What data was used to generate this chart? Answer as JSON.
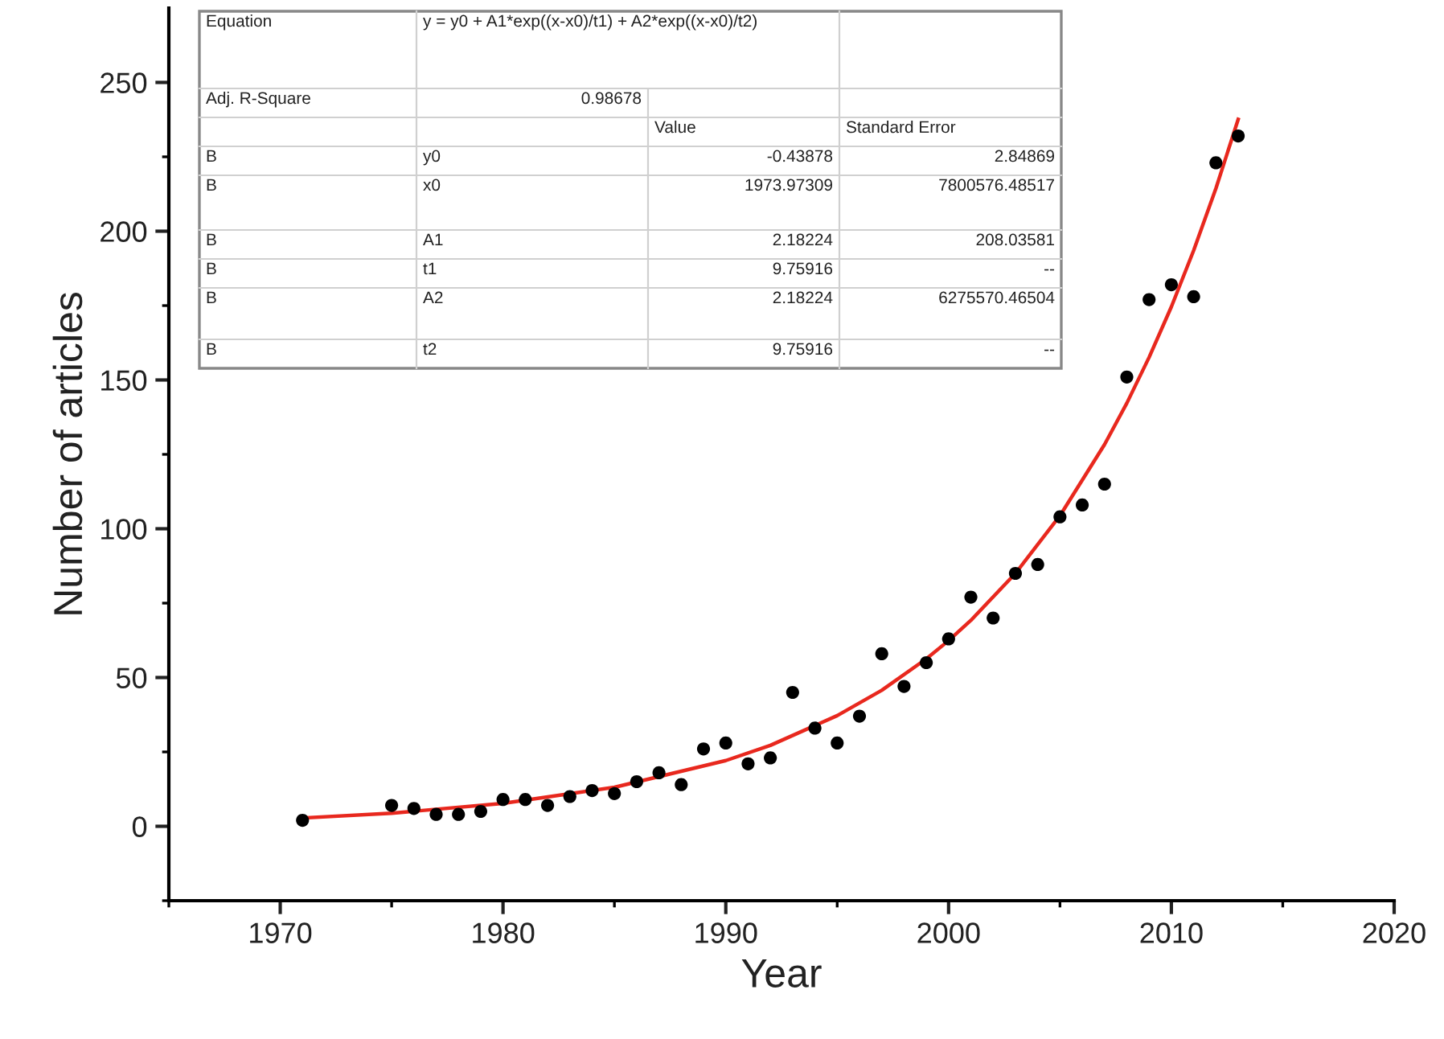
{
  "chart_data": {
    "type": "scatter",
    "xlabel": "Year",
    "ylabel": "Number of articles",
    "xlim": [
      1965,
      2020
    ],
    "xticks": [
      1970,
      1980,
      1990,
      2000,
      2010,
      2020
    ],
    "ylim": [
      -25,
      275
    ],
    "yticks": [
      0,
      50,
      100,
      150,
      200,
      250
    ],
    "legend": false,
    "series": [
      {
        "color": "#000000",
        "marker": "circle",
        "x": [
          1971,
          1975,
          1976,
          1977,
          1978,
          1979,
          1980,
          1981,
          1982,
          1983,
          1984,
          1985,
          1986,
          1987,
          1988,
          1989,
          1990,
          1991,
          1992,
          1993,
          1994,
          1995,
          1996,
          1997,
          1998,
          1999,
          2000,
          2001,
          2002,
          2003,
          2004,
          2005,
          2006,
          2007,
          2008,
          2009,
          2010,
          2011,
          2012,
          2013
        ],
        "values": [
          2,
          7,
          6,
          4,
          4,
          5,
          9,
          9,
          7,
          10,
          12,
          11,
          15,
          18,
          14,
          26,
          28,
          21,
          23,
          45,
          33,
          28,
          37,
          58,
          47,
          55,
          63,
          77,
          70,
          85,
          88,
          104,
          108,
          115,
          151,
          177,
          182,
          178,
          223,
          232
        ]
      },
      {
        "type": "line",
        "color": "#e8281e",
        "line_style": "solid",
        "x": [
          1971,
          1975,
          1980,
          1985,
          1990,
          1992,
          1995,
          1997,
          1999,
          2000,
          2001,
          2003,
          2005,
          2007,
          2008,
          2009,
          2010,
          2011,
          2012,
          2013
        ],
        "values": [
          2.8,
          4.4,
          7.7,
          13.1,
          22.1,
          27.2,
          37.2,
          45.7,
          56.3,
          62.4,
          69.2,
          85.0,
          104.4,
          128.3,
          142.2,
          157.6,
          174.6,
          193.5,
          214.4,
          237.6
        ]
      }
    ],
    "annotations": [
      "Equation",
      "y = y0 + A1*exp((x-x0)/t1) + A2*exp((x-x0)/t2)",
      "Adj. R-Square",
      "0.98678",
      "Value",
      "Standard Error",
      "B",
      "y0",
      "-0.43878",
      "2.84869",
      "B",
      "x0",
      "1973.97309",
      "7800576.48517",
      "B",
      "A1",
      "2.18224",
      "208.03581",
      "B",
      "t1",
      "9.75916",
      "--",
      "B",
      "A2",
      "2.18224",
      "6275570.46504",
      "B",
      "t2",
      "9.75916",
      "--"
    ]
  }
}
